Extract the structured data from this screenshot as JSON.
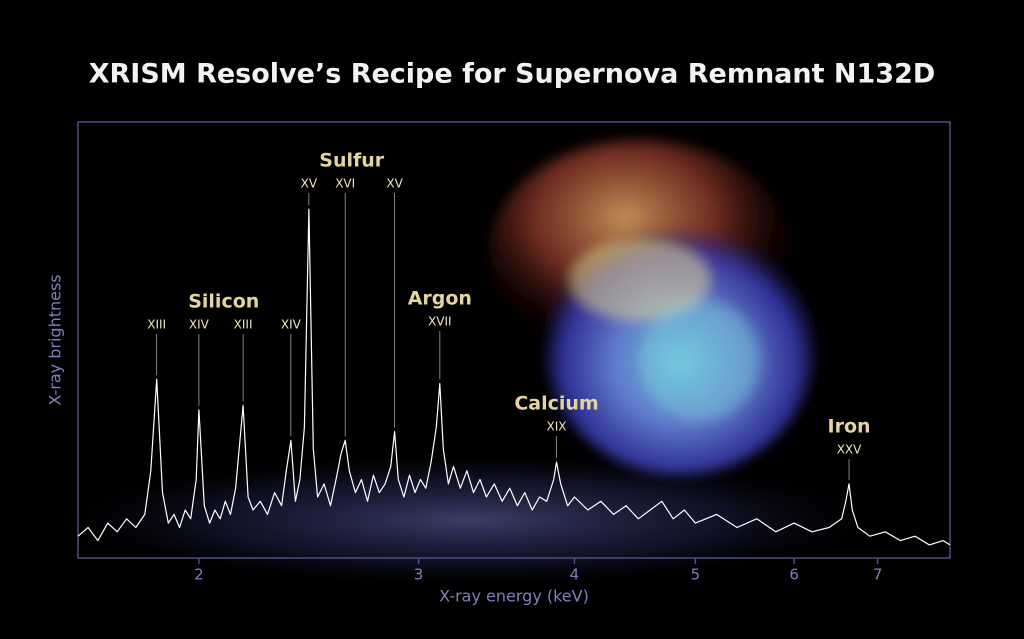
{
  "chart_data": {
    "type": "line",
    "title": "XRISM Resolve’s Recipe for Supernova Remnant N132D",
    "x_label": "X-ray energy (keV)",
    "y_label": "X-ray brightness",
    "log_x": true,
    "xlim": [
      1.6,
      8
    ],
    "xticks": [
      2,
      3,
      4,
      5,
      6,
      7
    ],
    "ylim": [
      0,
      100
    ],
    "color": "#ffffff",
    "x": [
      1.6,
      1.63,
      1.66,
      1.69,
      1.72,
      1.75,
      1.78,
      1.81,
      1.83,
      1.85,
      1.87,
      1.89,
      1.91,
      1.93,
      1.95,
      1.97,
      1.99,
      2.0,
      2.02,
      2.04,
      2.06,
      2.08,
      2.1,
      2.12,
      2.14,
      2.17,
      2.19,
      2.21,
      2.24,
      2.27,
      2.3,
      2.33,
      2.35,
      2.37,
      2.39,
      2.41,
      2.43,
      2.45,
      2.47,
      2.49,
      2.52,
      2.55,
      2.58,
      2.6,
      2.62,
      2.64,
      2.67,
      2.7,
      2.73,
      2.76,
      2.79,
      2.82,
      2.85,
      2.87,
      2.89,
      2.92,
      2.95,
      2.98,
      3.01,
      3.04,
      3.07,
      3.1,
      3.12,
      3.14,
      3.17,
      3.2,
      3.24,
      3.28,
      3.32,
      3.36,
      3.4,
      3.45,
      3.5,
      3.55,
      3.6,
      3.65,
      3.7,
      3.75,
      3.8,
      3.85,
      3.87,
      3.9,
      3.95,
      4.0,
      4.1,
      4.2,
      4.3,
      4.4,
      4.5,
      4.6,
      4.7,
      4.8,
      4.9,
      5.0,
      5.2,
      5.4,
      5.6,
      5.8,
      6.0,
      6.2,
      6.4,
      6.55,
      6.6,
      6.64,
      6.68,
      6.75,
      6.9,
      7.1,
      7.3,
      7.5,
      7.7,
      7.9,
      8.0
    ],
    "values": [
      5,
      7,
      4,
      8,
      6,
      9,
      7,
      10,
      20,
      41,
      15,
      8,
      10,
      7,
      11,
      9,
      18,
      34,
      12,
      8,
      11,
      9,
      13,
      10,
      16,
      35,
      14,
      11,
      13,
      10,
      15,
      12,
      20,
      27,
      13,
      18,
      30,
      80,
      25,
      14,
      17,
      12,
      19,
      24,
      27,
      20,
      15,
      18,
      13,
      19,
      15,
      17,
      21,
      29,
      18,
      14,
      19,
      15,
      18,
      16,
      22,
      30,
      40,
      25,
      17,
      21,
      16,
      20,
      15,
      18,
      14,
      17,
      13,
      16,
      12,
      15,
      11,
      14,
      13,
      18,
      22,
      17,
      12,
      14,
      11,
      13,
      10,
      12,
      9,
      11,
      13,
      9,
      11,
      8,
      10,
      7,
      9,
      6,
      8,
      6,
      7,
      9,
      13,
      17,
      11,
      7,
      5,
      6,
      4,
      5,
      3,
      4,
      3
    ],
    "annotations": [
      {
        "element": "Silicon",
        "ions": [
          {
            "label": "XIII",
            "energy": 1.85
          },
          {
            "label": "XIV",
            "energy": 2.0
          },
          {
            "label": "XIII",
            "energy": 2.17
          },
          {
            "label": "XIV",
            "energy": 2.37
          }
        ]
      },
      {
        "element": "Sulfur",
        "ions": [
          {
            "label": "XV",
            "energy": 2.45
          },
          {
            "label": "XVI",
            "energy": 2.62
          },
          {
            "label": "XV",
            "energy": 2.87
          }
        ]
      },
      {
        "element": "Argon",
        "ions": [
          {
            "label": "XVII",
            "energy": 3.12
          }
        ]
      },
      {
        "element": "Calcium",
        "ions": [
          {
            "label": "XIX",
            "energy": 3.87
          }
        ]
      },
      {
        "element": "Iron",
        "ions": [
          {
            "label": "XXV",
            "energy": 6.64
          }
        ]
      }
    ]
  }
}
